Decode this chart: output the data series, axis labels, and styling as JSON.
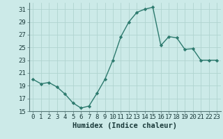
{
  "x": [
    0,
    1,
    2,
    3,
    4,
    5,
    6,
    7,
    8,
    9,
    10,
    11,
    12,
    13,
    14,
    15,
    16,
    17,
    18,
    19,
    20,
    21,
    22,
    23
  ],
  "y": [
    20,
    19.3,
    19.5,
    18.8,
    17.7,
    16.3,
    15.5,
    15.8,
    17.8,
    20.0,
    23.0,
    26.7,
    29.0,
    30.5,
    31.0,
    31.3,
    25.3,
    26.7,
    26.5,
    24.7,
    24.8,
    23.0,
    23.0,
    23.0
  ],
  "xlabel": "Humidex (Indice chaleur)",
  "ylim": [
    15,
    32
  ],
  "xlim": [
    -0.5,
    23.5
  ],
  "yticks": [
    15,
    17,
    19,
    21,
    23,
    25,
    27,
    29,
    31
  ],
  "xticks": [
    0,
    1,
    2,
    3,
    4,
    5,
    6,
    7,
    8,
    9,
    10,
    11,
    12,
    13,
    14,
    15,
    16,
    17,
    18,
    19,
    20,
    21,
    22,
    23
  ],
  "line_color": "#2d7a6e",
  "bg_color": "#cceae8",
  "grid_color": "#b0d4d0",
  "marker": "D",
  "marker_size": 2.2,
  "line_width": 1.0,
  "xlabel_fontsize": 7.5,
  "tick_fontsize": 6.5
}
